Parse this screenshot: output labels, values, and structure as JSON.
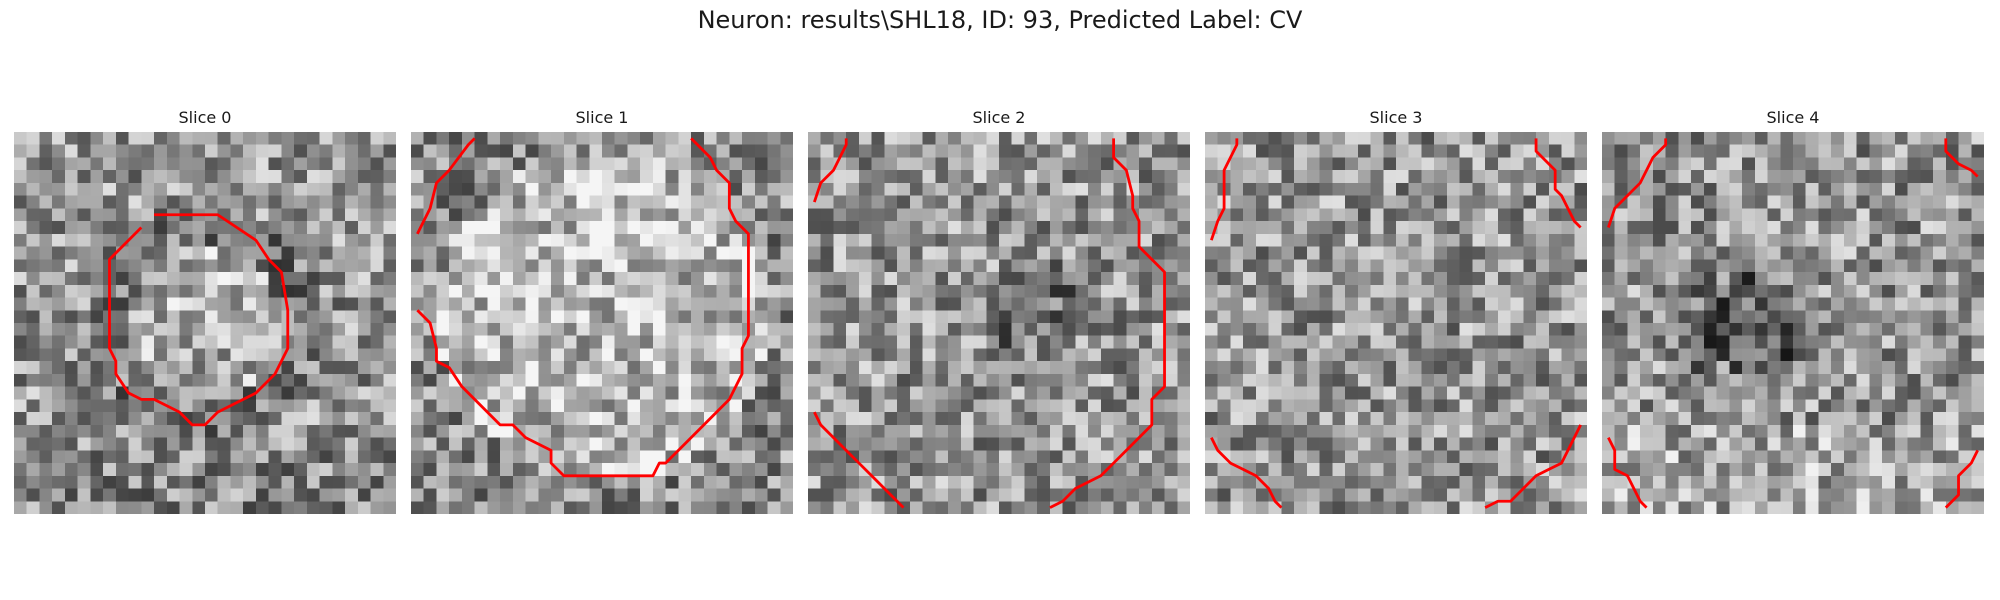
{
  "figure": {
    "title": "Neuron: results\\SHL18, ID: 93, Predicted Label: CV"
  },
  "outline_color": "#ff0000",
  "panels": [
    {
      "title": "Slice 0",
      "image_description": "grayscale noisy 30x30 patch with a darker ring around a lighter center",
      "contour": [
        [
          [
            11,
            6.5
          ],
          [
            16,
            6.5
          ],
          [
            19,
            8.5
          ],
          [
            20,
            10
          ],
          [
            21,
            11
          ],
          [
            21.5,
            14
          ],
          [
            21.5,
            17
          ],
          [
            20.5,
            19
          ],
          [
            19,
            20.5
          ],
          [
            18,
            21
          ],
          [
            16,
            22
          ],
          [
            15,
            23
          ],
          [
            14,
            23
          ],
          [
            13,
            22
          ],
          [
            11,
            21
          ],
          [
            10,
            21
          ],
          [
            9,
            20.5
          ],
          [
            8,
            19
          ],
          [
            8,
            18
          ],
          [
            7.5,
            17
          ],
          [
            7.5,
            10
          ],
          [
            9,
            8.5
          ],
          [
            10,
            7.5
          ]
        ]
      ]
    },
    {
      "title": "Slice 1",
      "image_description": "grayscale noisy patch with a large bright soma",
      "contour": [
        [
          [
            0.5,
            8
          ],
          [
            1.5,
            6
          ],
          [
            2,
            4
          ],
          [
            3,
            3
          ],
          [
            4.5,
            1
          ],
          [
            5,
            0.5
          ]
        ],
        [
          [
            0.5,
            14
          ],
          [
            1.5,
            15
          ],
          [
            2,
            17
          ],
          [
            2,
            18
          ],
          [
            3,
            18.5
          ],
          [
            4,
            20
          ],
          [
            6,
            22
          ],
          [
            7,
            23
          ],
          [
            8,
            23
          ],
          [
            9,
            24
          ],
          [
            10,
            24.5
          ],
          [
            11,
            25
          ],
          [
            11,
            26
          ],
          [
            12,
            27
          ],
          [
            19,
            27
          ],
          [
            19.5,
            26
          ],
          [
            20,
            26
          ],
          [
            21,
            25
          ],
          [
            22,
            24
          ],
          [
            23,
            23
          ],
          [
            24,
            22
          ],
          [
            25,
            21
          ],
          [
            25.5,
            20
          ],
          [
            26,
            19
          ],
          [
            26,
            17
          ],
          [
            26.5,
            16
          ],
          [
            26.5,
            8
          ],
          [
            25.5,
            7
          ],
          [
            25,
            6
          ],
          [
            25,
            4
          ],
          [
            24,
            3
          ],
          [
            23.5,
            2
          ],
          [
            22,
            0.5
          ]
        ]
      ]
    },
    {
      "title": "Slice 2",
      "image_description": "grayscale noisy patch with scattered dark pixels",
      "contour": [
        [
          [
            0.5,
            5.5
          ],
          [
            1,
            4
          ],
          [
            2,
            3
          ],
          [
            2.5,
            2
          ],
          [
            3,
            1
          ],
          [
            3,
            0.5
          ]
        ],
        [
          [
            24,
            0.5
          ],
          [
            24,
            2
          ],
          [
            25,
            3
          ],
          [
            25.5,
            5
          ],
          [
            25.5,
            6
          ],
          [
            26,
            7
          ],
          [
            26,
            9
          ],
          [
            27,
            10
          ],
          [
            28,
            11
          ],
          [
            28,
            14
          ],
          [
            28,
            17
          ],
          [
            28,
            20
          ],
          [
            27,
            21
          ],
          [
            27,
            23
          ],
          [
            26,
            24
          ],
          [
            25,
            25
          ],
          [
            24,
            26
          ],
          [
            23,
            27
          ],
          [
            22,
            27.5
          ],
          [
            21,
            28
          ],
          [
            20,
            29
          ],
          [
            19,
            29.5
          ]
        ],
        [
          [
            0.5,
            22
          ],
          [
            1,
            23
          ],
          [
            2,
            24
          ],
          [
            3,
            25
          ],
          [
            4,
            26
          ],
          [
            5,
            27
          ],
          [
            6,
            28
          ],
          [
            7,
            29
          ],
          [
            7.5,
            29.5
          ]
        ]
      ]
    },
    {
      "title": "Slice 3",
      "image_description": "grayscale noisy patch without clear structure",
      "contour": [
        [
          [
            0.5,
            8.5
          ],
          [
            1,
            7
          ],
          [
            1.5,
            6
          ],
          [
            1.5,
            3
          ],
          [
            2,
            2
          ],
          [
            2.5,
            1
          ],
          [
            2.5,
            0.5
          ]
        ],
        [
          [
            26,
            0.5
          ],
          [
            26,
            1.5
          ],
          [
            27,
            2.5
          ],
          [
            27.5,
            3
          ],
          [
            27.5,
            4.5
          ],
          [
            28,
            5
          ],
          [
            28.5,
            6
          ],
          [
            29,
            7
          ],
          [
            29.5,
            7.5
          ]
        ],
        [
          [
            0.5,
            24
          ],
          [
            1,
            25
          ],
          [
            2,
            26
          ],
          [
            3,
            26.5
          ],
          [
            4,
            27
          ],
          [
            5,
            28
          ],
          [
            5.5,
            29
          ],
          [
            6,
            29.5
          ]
        ],
        [
          [
            22,
            29.5
          ],
          [
            23,
            29
          ],
          [
            24,
            29
          ],
          [
            25,
            28
          ],
          [
            26,
            27
          ],
          [
            27,
            26.5
          ],
          [
            28,
            26
          ],
          [
            28.5,
            25
          ],
          [
            29,
            24
          ],
          [
            29.5,
            23
          ]
        ]
      ]
    },
    {
      "title": "Slice 4",
      "image_description": "grayscale noisy patch with a faint dark blob in the center",
      "contour": [
        [
          [
            0.5,
            7.5
          ],
          [
            1,
            6
          ],
          [
            2,
            5
          ],
          [
            3,
            4
          ],
          [
            3.5,
            3
          ],
          [
            4,
            2
          ],
          [
            5,
            1
          ],
          [
            5,
            0.5
          ]
        ],
        [
          [
            27,
            0.5
          ],
          [
            27,
            1.5
          ],
          [
            28,
            2.5
          ],
          [
            29,
            3
          ],
          [
            29.5,
            3.5
          ]
        ],
        [
          [
            0.5,
            24
          ],
          [
            1,
            25
          ],
          [
            1,
            26.5
          ],
          [
            2,
            27
          ],
          [
            2.5,
            28
          ],
          [
            3,
            29
          ],
          [
            3.5,
            29.5
          ]
        ],
        [
          [
            27,
            29.5
          ],
          [
            28,
            28.5
          ],
          [
            28,
            27
          ],
          [
            29,
            26
          ],
          [
            29.5,
            25
          ]
        ]
      ]
    }
  ]
}
